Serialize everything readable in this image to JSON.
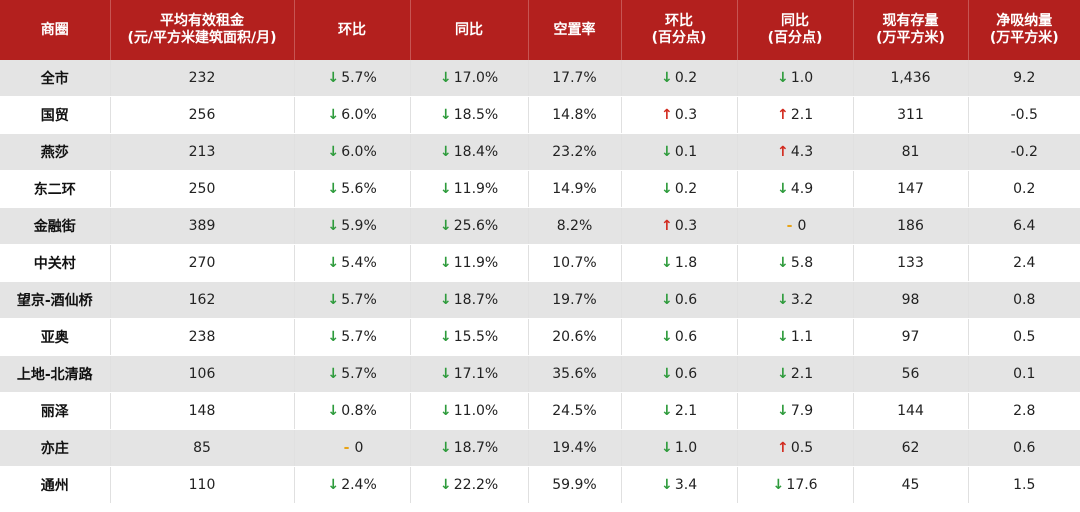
{
  "colors": {
    "header_bg": "#b3201e",
    "down": "#2e9b3c",
    "up": "#d22a1e",
    "flat": "#e8a317",
    "stripe": "#e4e4e4"
  },
  "icons": {
    "down": "arrow-down-icon",
    "up": "arrow-up-icon",
    "flat": "dash-icon"
  },
  "header": [
    {
      "l1": "商圈",
      "l2": ""
    },
    {
      "l1": "平均有效租金",
      "l2": "(元/平方米建筑面积/月)"
    },
    {
      "l1": "环比",
      "l2": ""
    },
    {
      "l1": "同比",
      "l2": ""
    },
    {
      "l1": "空置率",
      "l2": ""
    },
    {
      "l1": "环比",
      "l2": "(百分点)"
    },
    {
      "l1": "同比",
      "l2": "(百分点)"
    },
    {
      "l1": "现有存量",
      "l2": "(万平方米)"
    },
    {
      "l1": "净吸纳量",
      "l2": "(万平方米)"
    }
  ],
  "chart_data": {
    "type": "table",
    "rows": [
      {
        "name": "全市",
        "rent": "232",
        "rent_qoq": {
          "dir": "down",
          "val": "5.7%"
        },
        "rent_yoy": {
          "dir": "down",
          "val": "17.0%"
        },
        "vacancy": "17.7%",
        "vac_qoq": {
          "dir": "down",
          "val": "0.2"
        },
        "vac_yoy": {
          "dir": "down",
          "val": "1.0"
        },
        "stock": "1,436",
        "absorption": "9.2"
      },
      {
        "name": "国贸",
        "rent": "256",
        "rent_qoq": {
          "dir": "down",
          "val": "6.0%"
        },
        "rent_yoy": {
          "dir": "down",
          "val": "18.5%"
        },
        "vacancy": "14.8%",
        "vac_qoq": {
          "dir": "up",
          "val": "0.3"
        },
        "vac_yoy": {
          "dir": "up",
          "val": "2.1"
        },
        "stock": "311",
        "absorption": "-0.5"
      },
      {
        "name": "燕莎",
        "rent": "213",
        "rent_qoq": {
          "dir": "down",
          "val": "6.0%"
        },
        "rent_yoy": {
          "dir": "down",
          "val": "18.4%"
        },
        "vacancy": "23.2%",
        "vac_qoq": {
          "dir": "down",
          "val": "0.1"
        },
        "vac_yoy": {
          "dir": "up",
          "val": "4.3"
        },
        "stock": "81",
        "absorption": "-0.2"
      },
      {
        "name": "东二环",
        "rent": "250",
        "rent_qoq": {
          "dir": "down",
          "val": "5.6%"
        },
        "rent_yoy": {
          "dir": "down",
          "val": "11.9%"
        },
        "vacancy": "14.9%",
        "vac_qoq": {
          "dir": "down",
          "val": "0.2"
        },
        "vac_yoy": {
          "dir": "down",
          "val": "4.9"
        },
        "stock": "147",
        "absorption": "0.2"
      },
      {
        "name": "金融街",
        "rent": "389",
        "rent_qoq": {
          "dir": "down",
          "val": "5.9%"
        },
        "rent_yoy": {
          "dir": "down",
          "val": "25.6%"
        },
        "vacancy": "8.2%",
        "vac_qoq": {
          "dir": "up",
          "val": "0.3"
        },
        "vac_yoy": {
          "dir": "flat",
          "val": "0"
        },
        "stock": "186",
        "absorption": "6.4"
      },
      {
        "name": "中关村",
        "rent": "270",
        "rent_qoq": {
          "dir": "down",
          "val": "5.4%"
        },
        "rent_yoy": {
          "dir": "down",
          "val": "11.9%"
        },
        "vacancy": "10.7%",
        "vac_qoq": {
          "dir": "down",
          "val": "1.8"
        },
        "vac_yoy": {
          "dir": "down",
          "val": "5.8"
        },
        "stock": "133",
        "absorption": "2.4"
      },
      {
        "name": "望京-酒仙桥",
        "rent": "162",
        "rent_qoq": {
          "dir": "down",
          "val": "5.7%"
        },
        "rent_yoy": {
          "dir": "down",
          "val": "18.7%"
        },
        "vacancy": "19.7%",
        "vac_qoq": {
          "dir": "down",
          "val": "0.6"
        },
        "vac_yoy": {
          "dir": "down",
          "val": "3.2"
        },
        "stock": "98",
        "absorption": "0.8"
      },
      {
        "name": "亚奥",
        "rent": "238",
        "rent_qoq": {
          "dir": "down",
          "val": "5.7%"
        },
        "rent_yoy": {
          "dir": "down",
          "val": "15.5%"
        },
        "vacancy": "20.6%",
        "vac_qoq": {
          "dir": "down",
          "val": "0.6"
        },
        "vac_yoy": {
          "dir": "down",
          "val": "1.1"
        },
        "stock": "97",
        "absorption": "0.5"
      },
      {
        "name": "上地-北清路",
        "rent": "106",
        "rent_qoq": {
          "dir": "down",
          "val": "5.7%"
        },
        "rent_yoy": {
          "dir": "down",
          "val": "17.1%"
        },
        "vacancy": "35.6%",
        "vac_qoq": {
          "dir": "down",
          "val": "0.6"
        },
        "vac_yoy": {
          "dir": "down",
          "val": "2.1"
        },
        "stock": "56",
        "absorption": "0.1"
      },
      {
        "name": "丽泽",
        "rent": "148",
        "rent_qoq": {
          "dir": "down",
          "val": "0.8%"
        },
        "rent_yoy": {
          "dir": "down",
          "val": "11.0%"
        },
        "vacancy": "24.5%",
        "vac_qoq": {
          "dir": "down",
          "val": "2.1"
        },
        "vac_yoy": {
          "dir": "down",
          "val": "7.9"
        },
        "stock": "144",
        "absorption": "2.8"
      },
      {
        "name": "亦庄",
        "rent": "85",
        "rent_qoq": {
          "dir": "flat",
          "val": "0"
        },
        "rent_yoy": {
          "dir": "down",
          "val": "18.7%"
        },
        "vacancy": "19.4%",
        "vac_qoq": {
          "dir": "down",
          "val": "1.0"
        },
        "vac_yoy": {
          "dir": "up",
          "val": "0.5"
        },
        "stock": "62",
        "absorption": "0.6"
      },
      {
        "name": "通州",
        "rent": "110",
        "rent_qoq": {
          "dir": "down",
          "val": "2.4%"
        },
        "rent_yoy": {
          "dir": "down",
          "val": "22.2%"
        },
        "vacancy": "59.9%",
        "vac_qoq": {
          "dir": "down",
          "val": "3.4"
        },
        "vac_yoy": {
          "dir": "down",
          "val": "17.6"
        },
        "stock": "45",
        "absorption": "1.5"
      }
    ]
  }
}
